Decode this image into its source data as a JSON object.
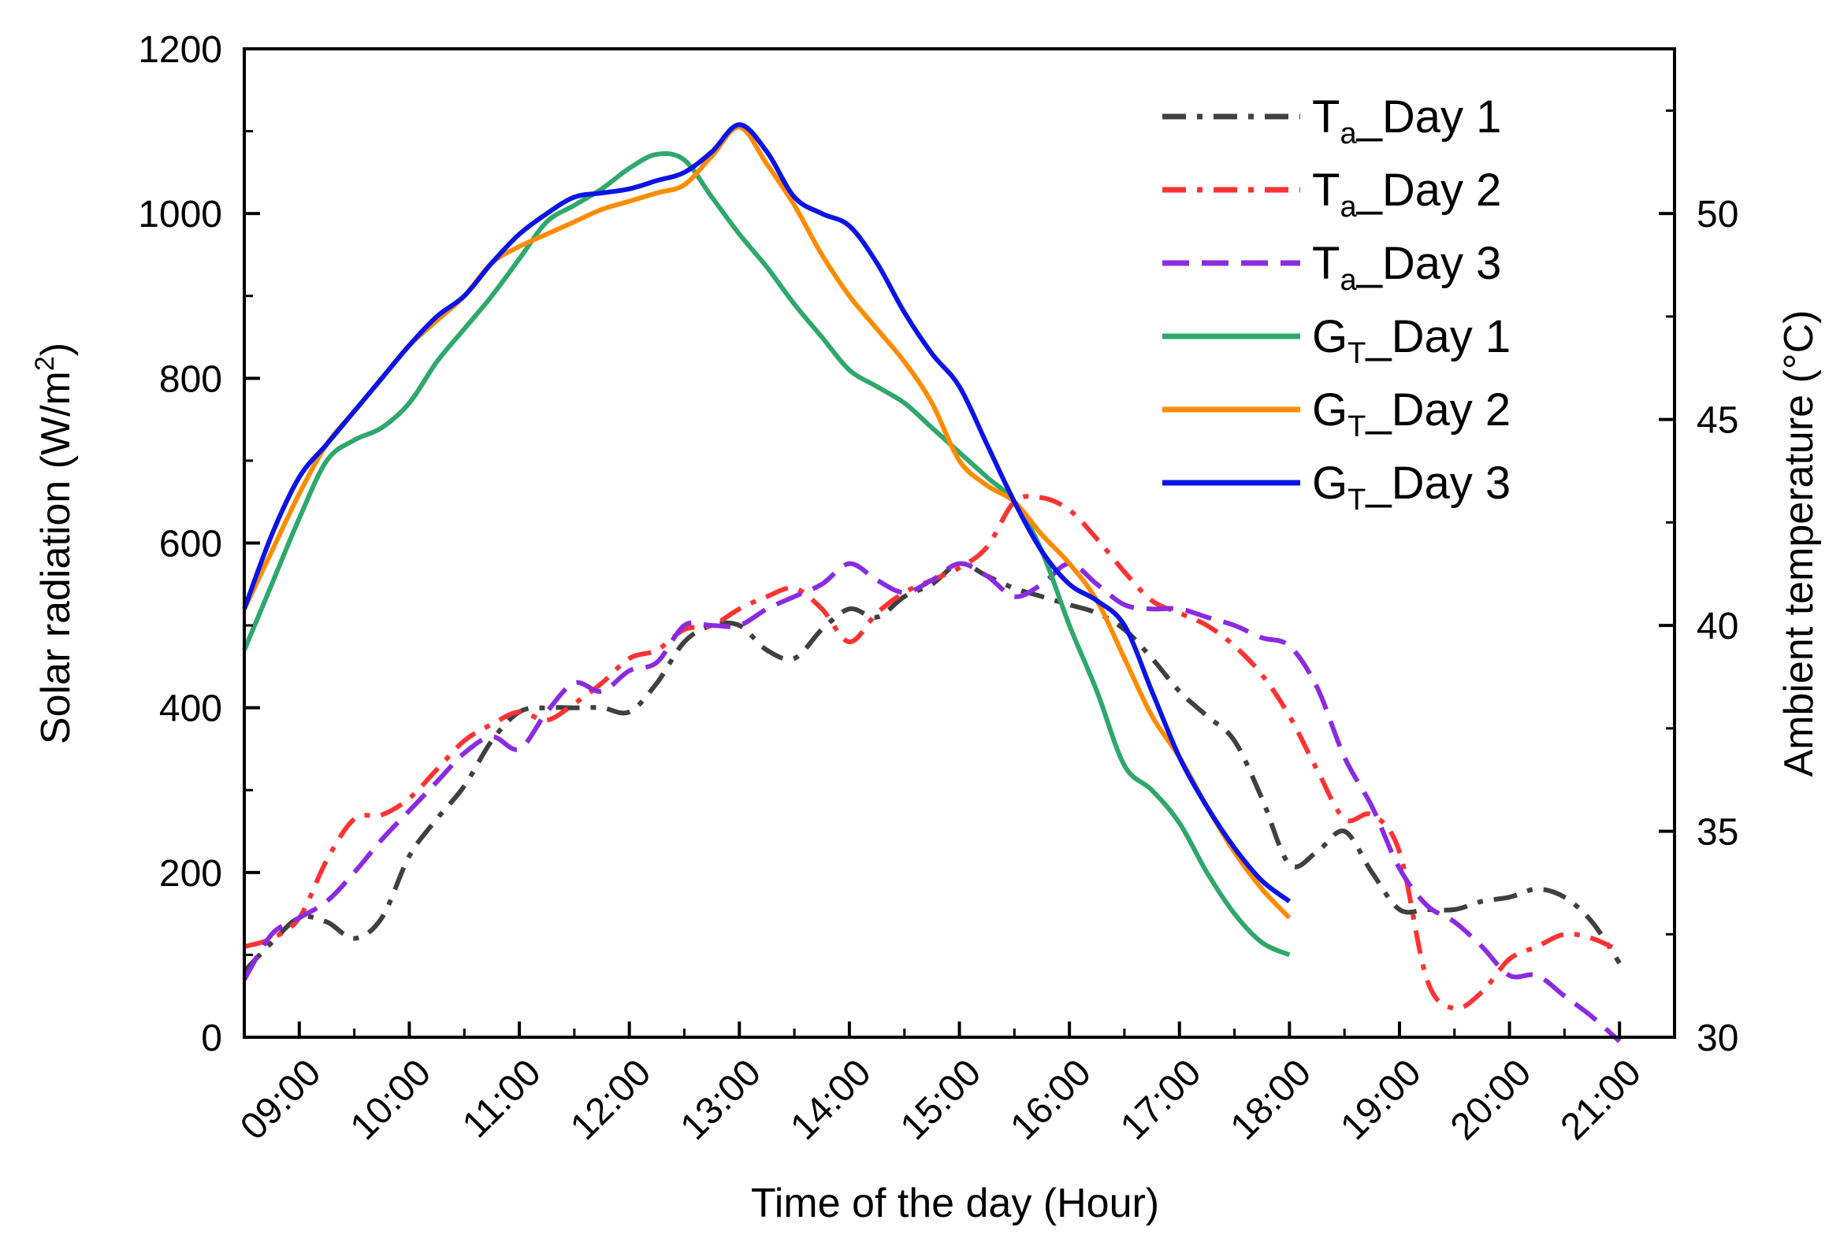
{
  "chart_data": {
    "type": "line",
    "xlabel": "Time of the day (Hour)",
    "ylabel_left": {
      "text": "Solar radiation (W/m",
      "sup": "2",
      "after": ")"
    },
    "ylabel_right": {
      "text": "Ambient temperature (",
      "unit": "°C",
      "after": ")"
    },
    "xlim": [
      8.5,
      21.5
    ],
    "ylim_left": [
      0,
      1200
    ],
    "ylim_right": [
      30,
      54
    ],
    "x_ticks": [
      9,
      10,
      11,
      12,
      13,
      14,
      15,
      16,
      17,
      18,
      19,
      20,
      21
    ],
    "x_tick_labels": [
      "09:00",
      "10:00",
      "11:00",
      "12:00",
      "13:00",
      "14:00",
      "15:00",
      "16:00",
      "17:00",
      "18:00",
      "19:00",
      "20:00",
      "21:00"
    ],
    "y_left_ticks": [
      0,
      200,
      400,
      600,
      800,
      1000,
      1200
    ],
    "y_left_tick_labels": [
      "0",
      "200",
      "400",
      "600",
      "800",
      "1000",
      "1200"
    ],
    "y_right_ticks": [
      30,
      35,
      40,
      45,
      50
    ],
    "y_right_tick_labels": [
      "30",
      "35",
      "40",
      "45",
      "50"
    ],
    "grid": false,
    "legend_position": "top-right",
    "series": [
      {
        "name": "T_Day 1",
        "name_main": "T",
        "name_sub": "a",
        "name_tail": "_Day 1",
        "axis": "right",
        "color": "#404040",
        "dash": "dashdot",
        "x": [
          8.5,
          8.75,
          9.0,
          9.25,
          9.5,
          9.75,
          10.0,
          10.25,
          10.5,
          10.75,
          11.0,
          11.25,
          11.5,
          11.75,
          12.0,
          12.25,
          12.5,
          12.75,
          13.0,
          13.25,
          13.5,
          13.75,
          14.0,
          14.25,
          14.5,
          14.75,
          15.0,
          15.25,
          15.5,
          15.75,
          16.0,
          16.25,
          16.5,
          16.75,
          17.0,
          17.25,
          17.5,
          17.75,
          18.0,
          18.25,
          18.5,
          18.75,
          19.0,
          19.25,
          19.5,
          19.75,
          20.0,
          20.25,
          20.5,
          20.75,
          21.0
        ],
        "y": [
          31.6,
          32.3,
          32.9,
          32.8,
          32.4,
          32.9,
          34.4,
          35.3,
          36.1,
          37.2,
          37.9,
          38.0,
          38.0,
          38.0,
          37.9,
          38.6,
          39.6,
          40.0,
          40.0,
          39.4,
          39.2,
          39.9,
          40.4,
          40.2,
          40.7,
          41.0,
          41.5,
          41.2,
          40.9,
          40.7,
          40.5,
          40.3,
          39.9,
          39.2,
          38.4,
          37.8,
          37.2,
          35.8,
          34.2,
          34.5,
          35.0,
          34.0,
          33.1,
          33.1,
          33.1,
          33.3,
          33.4,
          33.6,
          33.4,
          32.8,
          31.8
        ]
      },
      {
        "name": "T_Day 2",
        "name_main": "T",
        "name_sub": "a",
        "name_tail": "_Day 2",
        "axis": "right",
        "color": "#ff3333",
        "dash": "dashdot",
        "x": [
          8.5,
          8.75,
          9.0,
          9.25,
          9.5,
          9.75,
          10.0,
          10.25,
          10.5,
          10.75,
          11.0,
          11.25,
          11.5,
          11.75,
          12.0,
          12.25,
          12.5,
          12.75,
          13.0,
          13.25,
          13.5,
          13.75,
          14.0,
          14.25,
          14.5,
          14.75,
          15.0,
          15.25,
          15.5,
          15.75,
          16.0,
          16.25,
          16.5,
          16.75,
          17.0,
          17.25,
          17.5,
          17.75,
          18.0,
          18.25,
          18.5,
          18.75,
          19.0,
          19.25,
          19.5,
          19.75,
          20.0,
          20.25,
          20.5,
          20.75,
          21.0
        ],
        "y": [
          32.2,
          32.4,
          32.9,
          34.3,
          35.3,
          35.4,
          35.8,
          36.5,
          37.2,
          37.6,
          37.9,
          37.7,
          38.1,
          38.6,
          39.2,
          39.4,
          39.9,
          40.0,
          40.4,
          40.7,
          40.9,
          40.4,
          39.6,
          40.3,
          40.8,
          41.1,
          41.4,
          41.9,
          43.0,
          43.1,
          42.8,
          42.1,
          41.3,
          40.6,
          40.3,
          40.0,
          39.5,
          38.8,
          37.8,
          36.5,
          35.3,
          35.4,
          34.5,
          31.4,
          30.7,
          31.1,
          31.9,
          32.2,
          32.5,
          32.4,
          32.1
        ]
      },
      {
        "name": "T_Day 3",
        "name_main": "T",
        "name_sub": "a",
        "name_tail": "_Day 3",
        "axis": "right",
        "color": "#8a2be2",
        "dash": "dashed",
        "x": [
          8.5,
          8.75,
          9.0,
          9.25,
          9.5,
          9.75,
          10.0,
          10.25,
          10.5,
          10.75,
          11.0,
          11.25,
          11.5,
          11.75,
          12.0,
          12.25,
          12.5,
          12.75,
          13.0,
          13.25,
          13.5,
          13.75,
          14.0,
          14.25,
          14.5,
          14.75,
          15.0,
          15.25,
          15.5,
          15.75,
          16.0,
          16.25,
          16.5,
          16.75,
          17.0,
          17.25,
          17.5,
          17.75,
          18.0,
          18.25,
          18.5,
          18.75,
          19.0,
          19.25,
          19.5,
          19.75,
          20.0,
          20.25,
          20.5,
          20.75,
          21.0
        ],
        "y": [
          31.4,
          32.5,
          32.9,
          33.3,
          34.0,
          34.8,
          35.5,
          36.2,
          36.9,
          37.3,
          37.0,
          37.9,
          38.6,
          38.4,
          38.9,
          39.1,
          40.0,
          40.0,
          40.0,
          40.4,
          40.7,
          41.0,
          41.5,
          41.1,
          40.8,
          41.1,
          41.5,
          41.2,
          40.7,
          41.0,
          41.5,
          41.0,
          40.5,
          40.4,
          40.4,
          40.2,
          40.0,
          39.7,
          39.5,
          38.5,
          36.8,
          35.6,
          34.1,
          33.2,
          32.8,
          32.2,
          31.5,
          31.5,
          31.0,
          30.5,
          29.9
        ]
      },
      {
        "name": "G_Day 1",
        "name_main": "G",
        "name_sub": "T",
        "name_tail": "_Day 1",
        "axis": "left",
        "color": "#2ea86b",
        "dash": "solid",
        "x": [
          8.5,
          8.75,
          9.0,
          9.25,
          9.5,
          9.75,
          10.0,
          10.25,
          10.5,
          10.75,
          11.0,
          11.25,
          11.5,
          11.75,
          12.0,
          12.25,
          12.5,
          12.75,
          13.0,
          13.25,
          13.5,
          13.75,
          14.0,
          14.25,
          14.5,
          14.75,
          15.0,
          15.25,
          15.5,
          15.75,
          16.0,
          16.25,
          16.5,
          16.75,
          17.0,
          17.25,
          17.5,
          17.75,
          18.0
        ],
        "y": [
          470,
          550,
          630,
          700,
          725,
          740,
          770,
          820,
          860,
          900,
          945,
          990,
          1010,
          1030,
          1055,
          1072,
          1065,
          1020,
          975,
          935,
          890,
          850,
          810,
          790,
          770,
          740,
          710,
          680,
          650,
          590,
          500,
          420,
          330,
          300,
          260,
          200,
          150,
          115,
          100
        ]
      },
      {
        "name": "G_Day 2",
        "name_main": "G",
        "name_sub": "T",
        "name_tail": "_Day 2",
        "axis": "left",
        "color": "#ff8c00",
        "dash": "solid",
        "x": [
          8.5,
          8.75,
          9.0,
          9.25,
          9.5,
          9.75,
          10.0,
          10.25,
          10.5,
          10.75,
          11.0,
          11.25,
          11.5,
          11.75,
          12.0,
          12.25,
          12.5,
          12.75,
          13.0,
          13.25,
          13.5,
          13.75,
          14.0,
          14.25,
          14.5,
          14.75,
          15.0,
          15.25,
          15.5,
          15.75,
          16.0,
          16.25,
          16.5,
          16.75,
          17.0,
          17.25,
          17.5,
          17.75,
          18.0
        ],
        "y": [
          520,
          590,
          660,
          720,
          760,
          800,
          840,
          870,
          900,
          940,
          960,
          975,
          990,
          1005,
          1015,
          1025,
          1035,
          1070,
          1105,
          1060,
          1010,
          950,
          900,
          860,
          820,
          770,
          700,
          670,
          650,
          610,
          575,
          530,
          460,
          390,
          340,
          280,
          225,
          180,
          145
        ]
      },
      {
        "name": "G_Day 3",
        "name_main": "G",
        "name_sub": "T",
        "name_tail": "_Day 3",
        "axis": "left",
        "color": "#0a14e6",
        "dash": "solid",
        "x": [
          8.5,
          8.75,
          9.0,
          9.25,
          9.5,
          9.75,
          10.0,
          10.25,
          10.5,
          10.75,
          11.0,
          11.25,
          11.5,
          11.75,
          12.0,
          12.25,
          12.5,
          12.75,
          13.0,
          13.25,
          13.5,
          13.75,
          14.0,
          14.25,
          14.5,
          14.75,
          15.0,
          15.25,
          15.5,
          15.75,
          16.0,
          16.25,
          16.5,
          16.75,
          17.0,
          17.25,
          17.5,
          17.75,
          18.0
        ],
        "y": [
          520,
          610,
          680,
          720,
          760,
          800,
          840,
          875,
          900,
          940,
          975,
          1000,
          1020,
          1025,
          1030,
          1040,
          1050,
          1075,
          1108,
          1075,
          1020,
          1000,
          985,
          940,
          880,
          830,
          790,
          720,
          650,
          590,
          550,
          530,
          500,
          420,
          340,
          280,
          230,
          190,
          165
        ]
      }
    ]
  }
}
